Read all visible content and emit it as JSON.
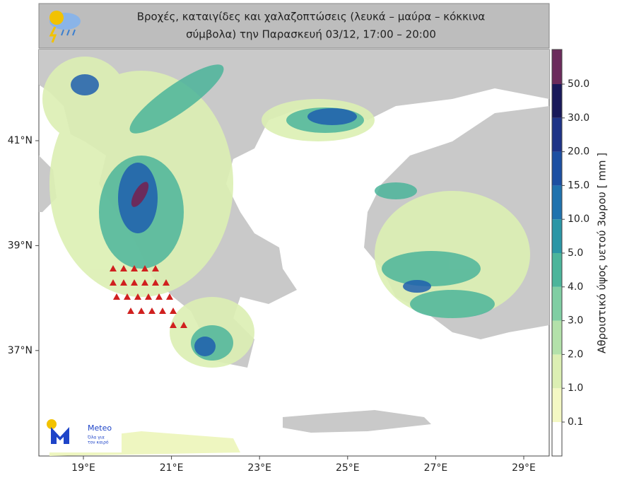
{
  "header": {
    "title_lines": [
      "Βροχές, καταιγίδες και χαλαζοπτώσεις (λευκά – μαύρα – κόκκινα",
      "σύμβολα) την Παρασκευή 03/12, 17:00 – 20:00"
    ]
  },
  "map": {
    "lon_ticks": [
      {
        "value": 19,
        "label": "19°E"
      },
      {
        "value": 21,
        "label": "21°E"
      },
      {
        "value": 23,
        "label": "23°E"
      },
      {
        "value": 25,
        "label": "25°E"
      },
      {
        "value": 27,
        "label": "27°E"
      },
      {
        "value": 29,
        "label": "29°E"
      }
    ],
    "lat_ticks": [
      {
        "value": 41,
        "label": "41°N"
      },
      {
        "value": 39,
        "label": "39°N"
      },
      {
        "value": 37,
        "label": "37°N"
      }
    ]
  },
  "colorbar": {
    "label": "Αθροιστικό ύψος υετού 3ωρου [ mm ]",
    "ticks": [
      0.1,
      {
        "value": 1,
        "label": "1.0"
      },
      {
        "value": 2,
        "label": "2.0"
      },
      {
        "value": 3,
        "label": "3.0"
      },
      {
        "value": 4,
        "label": "4.0"
      },
      {
        "value": 5,
        "label": "5.0"
      },
      {
        "value": 10,
        "label": "10.0"
      },
      {
        "value": 15,
        "label": "15.0"
      },
      {
        "value": 20,
        "label": "20.0"
      },
      {
        "value": 30,
        "label": "30.0"
      },
      {
        "value": 50,
        "label": "50.0"
      }
    ],
    "colors": [
      "#ffffff",
      "#f4f8c4",
      "#dcefb3",
      "#b3e1aa",
      "#80cea3",
      "#4cb59b",
      "#2b96a6",
      "#1f72ae",
      "#1c4fa2",
      "#1e3387",
      "#19195a",
      "#6b2b5c"
    ]
  },
  "logo": {
    "name": "Meteo",
    "tagline": [
      "Όλα για",
      "τον καιρό"
    ]
  }
}
